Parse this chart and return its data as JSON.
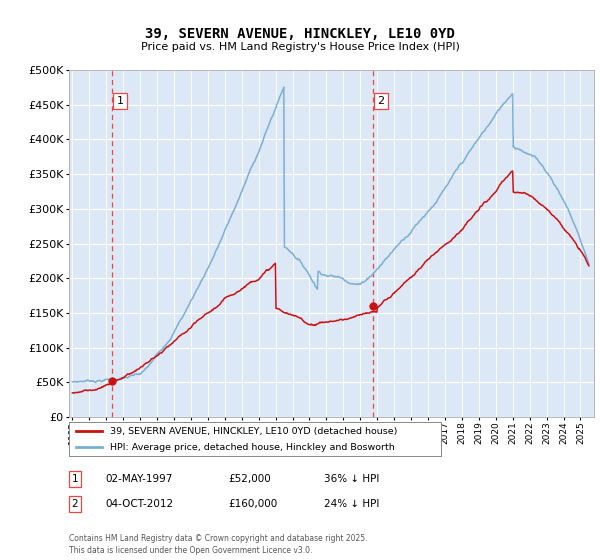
{
  "title1": "39, SEVERN AVENUE, HINCKLEY, LE10 0YD",
  "title2": "Price paid vs. HM Land Registry's House Price Index (HPI)",
  "hpi_color": "#7bafd4",
  "price_color": "#cc1111",
  "vline_color": "#ee4444",
  "bg_color": "#dce8f5",
  "ylim": [
    0,
    500000
  ],
  "yticks": [
    0,
    50000,
    100000,
    150000,
    200000,
    250000,
    300000,
    350000,
    400000,
    450000,
    500000
  ],
  "xlim_left": 1994.8,
  "xlim_right": 2025.8,
  "sale1_year": 1997.35,
  "sale1_price": 52000,
  "sale2_year": 2012.76,
  "sale2_price": 160000,
  "legend1": "39, SEVERN AVENUE, HINCKLEY, LE10 0YD (detached house)",
  "legend2": "HPI: Average price, detached house, Hinckley and Bosworth",
  "table": [
    {
      "num": "1",
      "date": "02-MAY-1997",
      "price": "£52,000",
      "pct": "36% ↓ HPI"
    },
    {
      "num": "2",
      "date": "04-OCT-2012",
      "price": "£160,000",
      "pct": "24% ↓ HPI"
    }
  ],
  "footnote": "Contains HM Land Registry data © Crown copyright and database right 2025.\nThis data is licensed under the Open Government Licence v3.0."
}
